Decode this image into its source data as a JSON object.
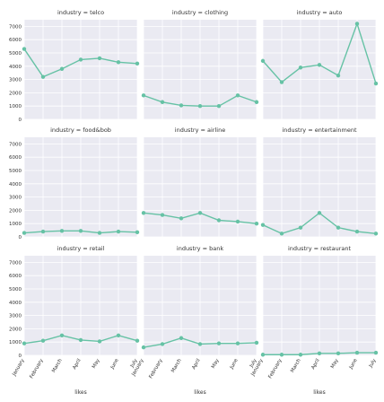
{
  "chart_data": [
    {
      "type": "line",
      "title": "industry = telco",
      "x": [
        "January",
        "February",
        "March",
        "April",
        "May",
        "June",
        "July"
      ],
      "series": [
        {
          "values": [
            5300,
            3200,
            3800,
            4500,
            4600,
            4300,
            4200
          ]
        }
      ],
      "ylim": [
        0,
        7500
      ],
      "yticks": [
        0,
        1000,
        2000,
        3000,
        4000,
        5000,
        6000,
        7000
      ],
      "xlabel": "",
      "ylabel": "",
      "grid": true
    },
    {
      "type": "line",
      "title": "industry = clothing",
      "x": [
        "January",
        "February",
        "March",
        "April",
        "May",
        "June",
        "July"
      ],
      "series": [
        {
          "values": [
            1800,
            1300,
            1050,
            1000,
            1000,
            1800,
            1300
          ]
        }
      ],
      "ylim": [
        0,
        7500
      ],
      "yticks": [
        0,
        1000,
        2000,
        3000,
        4000,
        5000,
        6000,
        7000
      ],
      "xlabel": "",
      "ylabel": "",
      "grid": true
    },
    {
      "type": "line",
      "title": "industry = auto",
      "x": [
        "January",
        "February",
        "March",
        "April",
        "May",
        "June",
        "July"
      ],
      "series": [
        {
          "values": [
            4400,
            2800,
            3900,
            4100,
            3300,
            7200,
            2700
          ]
        }
      ],
      "ylim": [
        0,
        7500
      ],
      "yticks": [
        0,
        1000,
        2000,
        3000,
        4000,
        5000,
        6000,
        7000
      ],
      "xlabel": "",
      "ylabel": "",
      "grid": true
    },
    {
      "type": "line",
      "title": "industry = food&bob",
      "x": [
        "January",
        "February",
        "March",
        "April",
        "May",
        "June",
        "July"
      ],
      "series": [
        {
          "values": [
            300,
            400,
            450,
            450,
            300,
            400,
            350
          ]
        }
      ],
      "ylim": [
        0,
        7500
      ],
      "yticks": [
        0,
        1000,
        2000,
        3000,
        4000,
        5000,
        6000,
        7000
      ],
      "xlabel": "",
      "ylabel": "",
      "grid": true
    },
    {
      "type": "line",
      "title": "industry = airline",
      "x": [
        "January",
        "February",
        "March",
        "April",
        "May",
        "June",
        "July"
      ],
      "series": [
        {
          "values": [
            1800,
            1650,
            1400,
            1800,
            1250,
            1150,
            1000
          ]
        }
      ],
      "ylim": [
        0,
        7500
      ],
      "yticks": [
        0,
        1000,
        2000,
        3000,
        4000,
        5000,
        6000,
        7000
      ],
      "xlabel": "",
      "ylabel": "",
      "grid": true
    },
    {
      "type": "line",
      "title": "industry = entertainment",
      "x": [
        "January",
        "February",
        "March",
        "April",
        "May",
        "June",
        "July"
      ],
      "series": [
        {
          "values": [
            900,
            250,
            700,
            1800,
            700,
            400,
            250
          ]
        }
      ],
      "ylim": [
        0,
        7500
      ],
      "yticks": [
        0,
        1000,
        2000,
        3000,
        4000,
        5000,
        6000,
        7000
      ],
      "xlabel": "",
      "ylabel": "",
      "grid": true
    },
    {
      "type": "line",
      "title": "industry = retail",
      "x": [
        "January",
        "February",
        "March",
        "April",
        "May",
        "June",
        "July"
      ],
      "series": [
        {
          "values": [
            900,
            1100,
            1500,
            1150,
            1050,
            1500,
            1100
          ]
        }
      ],
      "ylim": [
        0,
        7500
      ],
      "yticks": [
        0,
        1000,
        2000,
        3000,
        4000,
        5000,
        6000,
        7000
      ],
      "xlabel": "likes",
      "ylabel": "",
      "grid": true
    },
    {
      "type": "line",
      "title": "industry = bank",
      "x": [
        "January",
        "February",
        "March",
        "April",
        "May",
        "June",
        "July"
      ],
      "series": [
        {
          "values": [
            600,
            850,
            1300,
            850,
            900,
            900,
            950
          ]
        }
      ],
      "ylim": [
        0,
        7500
      ],
      "yticks": [
        0,
        1000,
        2000,
        3000,
        4000,
        5000,
        6000,
        7000
      ],
      "xlabel": "likes",
      "ylabel": "",
      "grid": true
    },
    {
      "type": "line",
      "title": "industry = restaurant",
      "x": [
        "January",
        "February",
        "March",
        "April",
        "May",
        "June",
        "July"
      ],
      "series": [
        {
          "values": [
            50,
            50,
            50,
            150,
            150,
            200,
            200
          ]
        }
      ],
      "ylim": [
        0,
        7500
      ],
      "yticks": [
        0,
        1000,
        2000,
        3000,
        4000,
        5000,
        6000,
        7000
      ],
      "xlabel": "likes",
      "ylabel": "",
      "grid": true
    }
  ],
  "colors": {
    "series_line": "#66c2a5",
    "panel_background": "#eaeaf2",
    "grid": "#ffffff",
    "text": "#333333"
  }
}
